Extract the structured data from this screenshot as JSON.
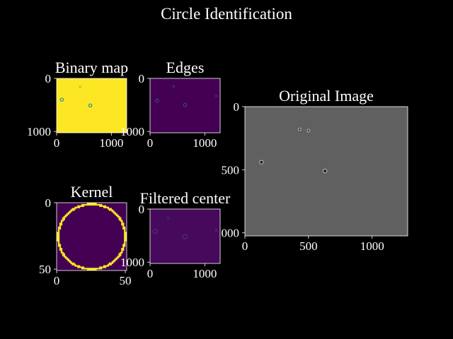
{
  "figure": {
    "suptitle": "Circle Identification",
    "background": "#000000",
    "text_color": "#ffffff"
  },
  "chart_data": [
    {
      "id": "binary",
      "type": "heatmap",
      "title": "Binary map",
      "colormap": "viridis",
      "fill": "#fde725",
      "xlim": [
        0,
        1280
      ],
      "ylim": [
        1024,
        0
      ],
      "xticks": [
        0,
        1000
      ],
      "yticks": [
        0,
        1000
      ],
      "xtick_labels": [
        "0",
        "1000"
      ],
      "ytick_labels": [
        "0",
        "1000"
      ],
      "features": [
        {
          "x": 95,
          "y": 400,
          "r": 28,
          "color": "#21918c"
        },
        {
          "x": 615,
          "y": 510,
          "r": 28,
          "color": "#21918c"
        },
        {
          "x": 430,
          "y": 160,
          "r": 6,
          "color": "#a8c94a"
        }
      ]
    },
    {
      "id": "edges",
      "type": "heatmap",
      "title": "Edges",
      "colormap": "viridis",
      "fill": "#440154",
      "xlim": [
        0,
        1280
      ],
      "ylim": [
        1024,
        0
      ],
      "xticks": [
        0,
        1000
      ],
      "yticks": [
        0,
        1000
      ],
      "xtick_labels": [
        "0",
        "1000"
      ],
      "ytick_labels": [
        "0",
        "1000"
      ],
      "features": [
        {
          "x": 130,
          "y": 420,
          "r": 30,
          "color": "#4b3a8a"
        },
        {
          "x": 640,
          "y": 500,
          "r": 30,
          "color": "#4b3a8a"
        },
        {
          "x": 430,
          "y": 150,
          "r": 8,
          "color": "#3b2f7a"
        },
        {
          "x": 1210,
          "y": 330,
          "r": 10,
          "color": "#3b2f7a"
        }
      ]
    },
    {
      "id": "original",
      "type": "heatmap",
      "title": "Original Image",
      "colormap": "gray",
      "fill": "#626262",
      "xlim": [
        0,
        1280
      ],
      "ylim": [
        1024,
        0
      ],
      "xticks": [
        0,
        500,
        1000
      ],
      "yticks": [
        0,
        500,
        1000
      ],
      "xtick_labels": [
        "0",
        "500",
        "1000"
      ],
      "ytick_labels": [
        "0",
        "500",
        "1000"
      ],
      "features": [
        {
          "x": 130,
          "y": 440,
          "r": 18,
          "color": "#1a1a1a"
        },
        {
          "x": 630,
          "y": 510,
          "r": 18,
          "color": "#1a1a1a"
        },
        {
          "x": 430,
          "y": 180,
          "r": 5,
          "color": "#3c3c3c"
        },
        {
          "x": 500,
          "y": 190,
          "r": 5,
          "color": "#3c3c3c"
        }
      ]
    },
    {
      "id": "kernel",
      "type": "heatmap",
      "title": "Kernel",
      "colormap": "viridis",
      "fill": "#440154",
      "ring_color": "#fde725",
      "size": 51,
      "ring_radius": 24.5,
      "xlim": [
        0,
        51
      ],
      "ylim": [
        51,
        0
      ],
      "xticks": [
        0,
        50
      ],
      "yticks": [
        0,
        50
      ],
      "xtick_labels": [
        "0",
        "50"
      ],
      "ytick_labels": [
        "0",
        "50"
      ]
    },
    {
      "id": "filtered",
      "type": "heatmap",
      "title": "Filtered center",
      "colormap": "viridis",
      "fill": "#46095b",
      "xlim": [
        0,
        1280
      ],
      "ylim": [
        1024,
        0
      ],
      "xticks": [
        0,
        1000
      ],
      "yticks": [
        0,
        1000
      ],
      "xtick_labels": [
        "0",
        "1000"
      ],
      "ytick_labels": [
        "0",
        "1000"
      ],
      "features": [
        {
          "x": 95,
          "y": 420,
          "r": 40,
          "color": "#52307a"
        },
        {
          "x": 640,
          "y": 520,
          "r": 40,
          "color": "#52307a"
        },
        {
          "x": 1210,
          "y": 400,
          "r": 20,
          "color": "#4a2570"
        },
        {
          "x": 330,
          "y": 170,
          "r": 20,
          "color": "#4a2570"
        }
      ]
    }
  ]
}
